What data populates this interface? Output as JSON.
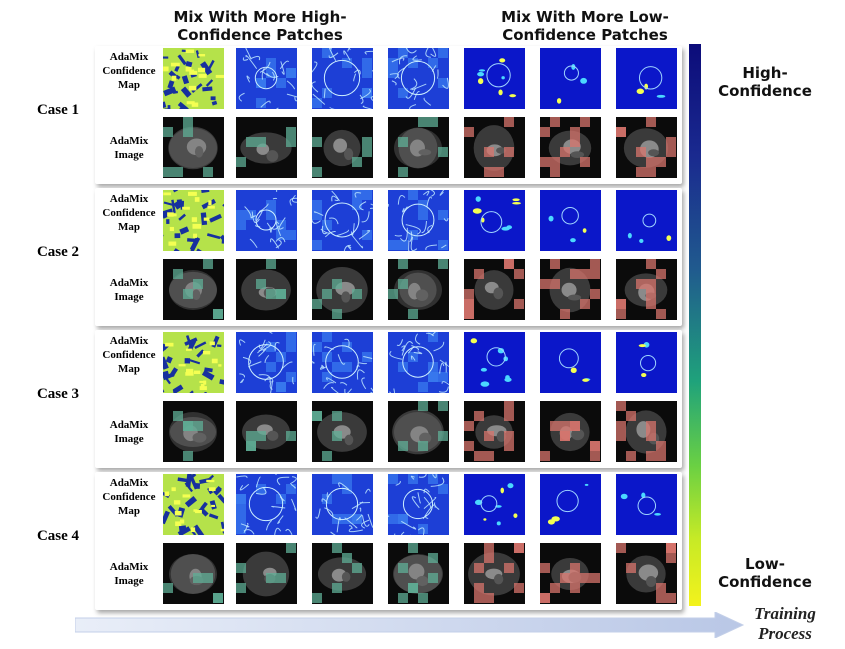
{
  "headers": {
    "high": "Mix With More High-\nConfidence Patches",
    "low": "Mix With More Low-\nConfidence Patches"
  },
  "row_labels": {
    "confidence": "AdaMix\nConfidence\nMap",
    "image": "AdaMix\nImage"
  },
  "cases": [
    {
      "label": "Case 1"
    },
    {
      "label": "Case 2"
    },
    {
      "label": "Case 3"
    },
    {
      "label": "Case 4"
    }
  ],
  "colorbar": {
    "top_label": "High-\nConfidence",
    "bottom_label": "Low-\nConfidence",
    "colors": [
      "#0c0c7a",
      "#205a8e",
      "#1fa27b",
      "#6ad043",
      "#f3f21c"
    ]
  },
  "training_label": "Training\nProcess",
  "columns": 7
}
